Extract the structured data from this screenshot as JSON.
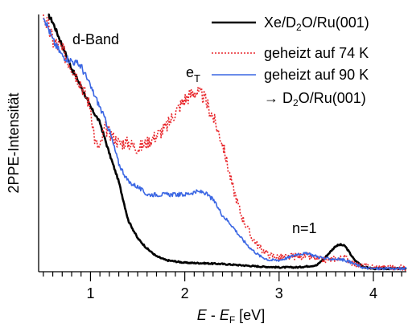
{
  "chart_data": {
    "type": "line",
    "xlabel_parts": {
      "e": "E",
      "sep": " - ",
      "ef": "E",
      "ef_sub": "F",
      "unit": " [eV]"
    },
    "ylabel": "2PPE-Intensität",
    "xlim": [
      0.45,
      4.35
    ],
    "ylim": [
      0,
      1.0
    ],
    "x_ticks": [
      1,
      2,
      3,
      4
    ],
    "x_tick_labels": [
      "1",
      "2",
      "3",
      "4"
    ],
    "x_minor_step": 0.1,
    "y_ticks_shown": false,
    "annotations": {
      "dband": "d-Band",
      "eT_main": "e",
      "eT_sub": "T",
      "n1": "n=1"
    },
    "legend": {
      "position": "top-right",
      "entries": [
        {
          "key": "black",
          "parts": [
            {
              "t": "Xe/D"
            },
            {
              "t": "2",
              "sub": true
            },
            {
              "t": "O/Ru(001)"
            }
          ]
        },
        {
          "key": "red",
          "parts": [
            {
              "t": "geheizt auf 74 K"
            }
          ]
        },
        {
          "key": "blue",
          "parts": [
            {
              "t": "geheizt auf 90 K"
            }
          ]
        },
        {
          "key": "blue_cont",
          "parts": [
            {
              "t": "→ D"
            },
            {
              "t": "2",
              "sub": true
            },
            {
              "t": "O/Ru(001)"
            }
          ]
        }
      ]
    },
    "series": [
      {
        "key": "black",
        "color": "#000000",
        "style": "solid",
        "points": [
          [
            0.55,
            1.0
          ],
          [
            0.6,
            0.97
          ],
          [
            0.7,
            0.88
          ],
          [
            0.8,
            0.79
          ],
          [
            0.9,
            0.72
          ],
          [
            1.0,
            0.64
          ],
          [
            1.1,
            0.58
          ],
          [
            1.2,
            0.46
          ],
          [
            1.3,
            0.35
          ],
          [
            1.4,
            0.2
          ],
          [
            1.5,
            0.13
          ],
          [
            1.6,
            0.09
          ],
          [
            1.7,
            0.06
          ],
          [
            1.8,
            0.045
          ],
          [
            1.9,
            0.04
          ],
          [
            2.0,
            0.035
          ],
          [
            2.2,
            0.033
          ],
          [
            2.4,
            0.03
          ],
          [
            2.6,
            0.025
          ],
          [
            2.8,
            0.02
          ],
          [
            3.0,
            0.017
          ],
          [
            3.2,
            0.017
          ],
          [
            3.4,
            0.025
          ],
          [
            3.5,
            0.06
          ],
          [
            3.6,
            0.1
          ],
          [
            3.65,
            0.105
          ],
          [
            3.7,
            0.1
          ],
          [
            3.8,
            0.045
          ],
          [
            3.9,
            0.018
          ],
          [
            4.0,
            0.012
          ],
          [
            4.35,
            0.012
          ]
        ]
      },
      {
        "key": "red",
        "color": "#e8262b",
        "style": "dotted",
        "points": [
          [
            0.5,
            1.0
          ],
          [
            0.6,
            0.9
          ],
          [
            0.7,
            0.86
          ],
          [
            0.8,
            0.8
          ],
          [
            0.9,
            0.73
          ],
          [
            1.0,
            0.64
          ],
          [
            1.05,
            0.5
          ],
          [
            1.1,
            0.48
          ],
          [
            1.15,
            0.56
          ],
          [
            1.2,
            0.54
          ],
          [
            1.3,
            0.5
          ],
          [
            1.4,
            0.5
          ],
          [
            1.5,
            0.48
          ],
          [
            1.6,
            0.5
          ],
          [
            1.7,
            0.53
          ],
          [
            1.8,
            0.56
          ],
          [
            1.9,
            0.62
          ],
          [
            2.0,
            0.67
          ],
          [
            2.1,
            0.7
          ],
          [
            2.2,
            0.68
          ],
          [
            2.3,
            0.6
          ],
          [
            2.4,
            0.5
          ],
          [
            2.5,
            0.34
          ],
          [
            2.6,
            0.22
          ],
          [
            2.7,
            0.14
          ],
          [
            2.8,
            0.09
          ],
          [
            2.9,
            0.065
          ],
          [
            3.0,
            0.055
          ],
          [
            3.2,
            0.06
          ],
          [
            3.3,
            0.06
          ],
          [
            3.4,
            0.05
          ],
          [
            3.5,
            0.045
          ],
          [
            3.6,
            0.05
          ],
          [
            3.7,
            0.055
          ],
          [
            3.8,
            0.03
          ],
          [
            3.9,
            0.02
          ],
          [
            4.0,
            0.018
          ],
          [
            4.35,
            0.015
          ]
        ]
      },
      {
        "key": "blue",
        "color": "#3a66e3",
        "style": "solid",
        "points": [
          [
            0.5,
            1.0
          ],
          [
            0.6,
            0.9
          ],
          [
            0.7,
            0.84
          ],
          [
            0.8,
            0.82
          ],
          [
            0.9,
            0.8
          ],
          [
            1.0,
            0.72
          ],
          [
            1.1,
            0.64
          ],
          [
            1.2,
            0.55
          ],
          [
            1.3,
            0.42
          ],
          [
            1.4,
            0.35
          ],
          [
            1.5,
            0.33
          ],
          [
            1.6,
            0.3
          ],
          [
            1.7,
            0.3
          ],
          [
            1.8,
            0.3
          ],
          [
            1.9,
            0.3
          ],
          [
            2.0,
            0.3
          ],
          [
            2.1,
            0.31
          ],
          [
            2.2,
            0.31
          ],
          [
            2.3,
            0.28
          ],
          [
            2.4,
            0.22
          ],
          [
            2.5,
            0.18
          ],
          [
            2.6,
            0.13
          ],
          [
            2.7,
            0.09
          ],
          [
            2.8,
            0.06
          ],
          [
            2.9,
            0.045
          ],
          [
            3.0,
            0.045
          ],
          [
            3.1,
            0.055
          ],
          [
            3.2,
            0.07
          ],
          [
            3.3,
            0.07
          ],
          [
            3.4,
            0.06
          ],
          [
            3.5,
            0.05
          ],
          [
            3.6,
            0.05
          ],
          [
            3.7,
            0.045
          ],
          [
            3.8,
            0.03
          ],
          [
            3.9,
            0.015
          ],
          [
            4.0,
            0.012
          ],
          [
            4.35,
            0.012
          ]
        ]
      }
    ]
  }
}
